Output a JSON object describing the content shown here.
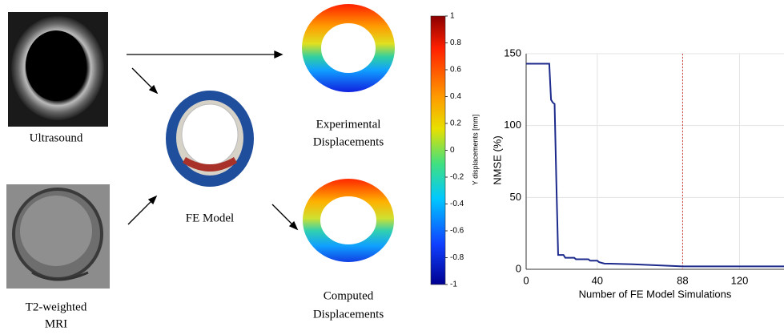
{
  "panels": {
    "ultrasound": "Ultrasound",
    "mri": [
      "T2-weighted",
      "MRI"
    ],
    "fe_model": "FE Model",
    "experimental": [
      "Experimental",
      "Displacements"
    ],
    "computed": [
      "Computed",
      "Displacements"
    ]
  },
  "colorbar": {
    "label": "Y displacements [mm]",
    "lim": [
      -1,
      1
    ],
    "ticks": [
      1,
      0.8,
      0.6,
      0.4,
      0.2,
      0,
      -0.2,
      -0.4,
      -0.6,
      -0.8,
      -1
    ]
  },
  "chart_data": {
    "type": "line",
    "xlabel": "Number of FE Model Simulations",
    "ylabel": "NMSE (%)",
    "x": [
      0,
      13,
      14,
      15,
      16,
      17,
      18,
      21,
      22,
      27,
      28,
      35,
      36,
      40,
      41,
      44,
      60,
      88,
      120,
      145
    ],
    "series": [
      {
        "color": "#1c2a8c",
        "values": [
          143,
          143,
          118,
          116,
          115,
          60,
          10,
          10,
          8,
          8,
          7,
          7,
          6,
          6,
          5,
          4,
          3.5,
          2,
          2,
          2
        ]
      }
    ],
    "xlim": [
      0,
      145
    ],
    "ylim": [
      0,
      150
    ],
    "xticks": [
      0,
      40,
      88,
      120
    ],
    "yticks": [
      0,
      50,
      100,
      150
    ],
    "grid": true,
    "vline": {
      "x": 88,
      "color": "#d04040"
    }
  }
}
